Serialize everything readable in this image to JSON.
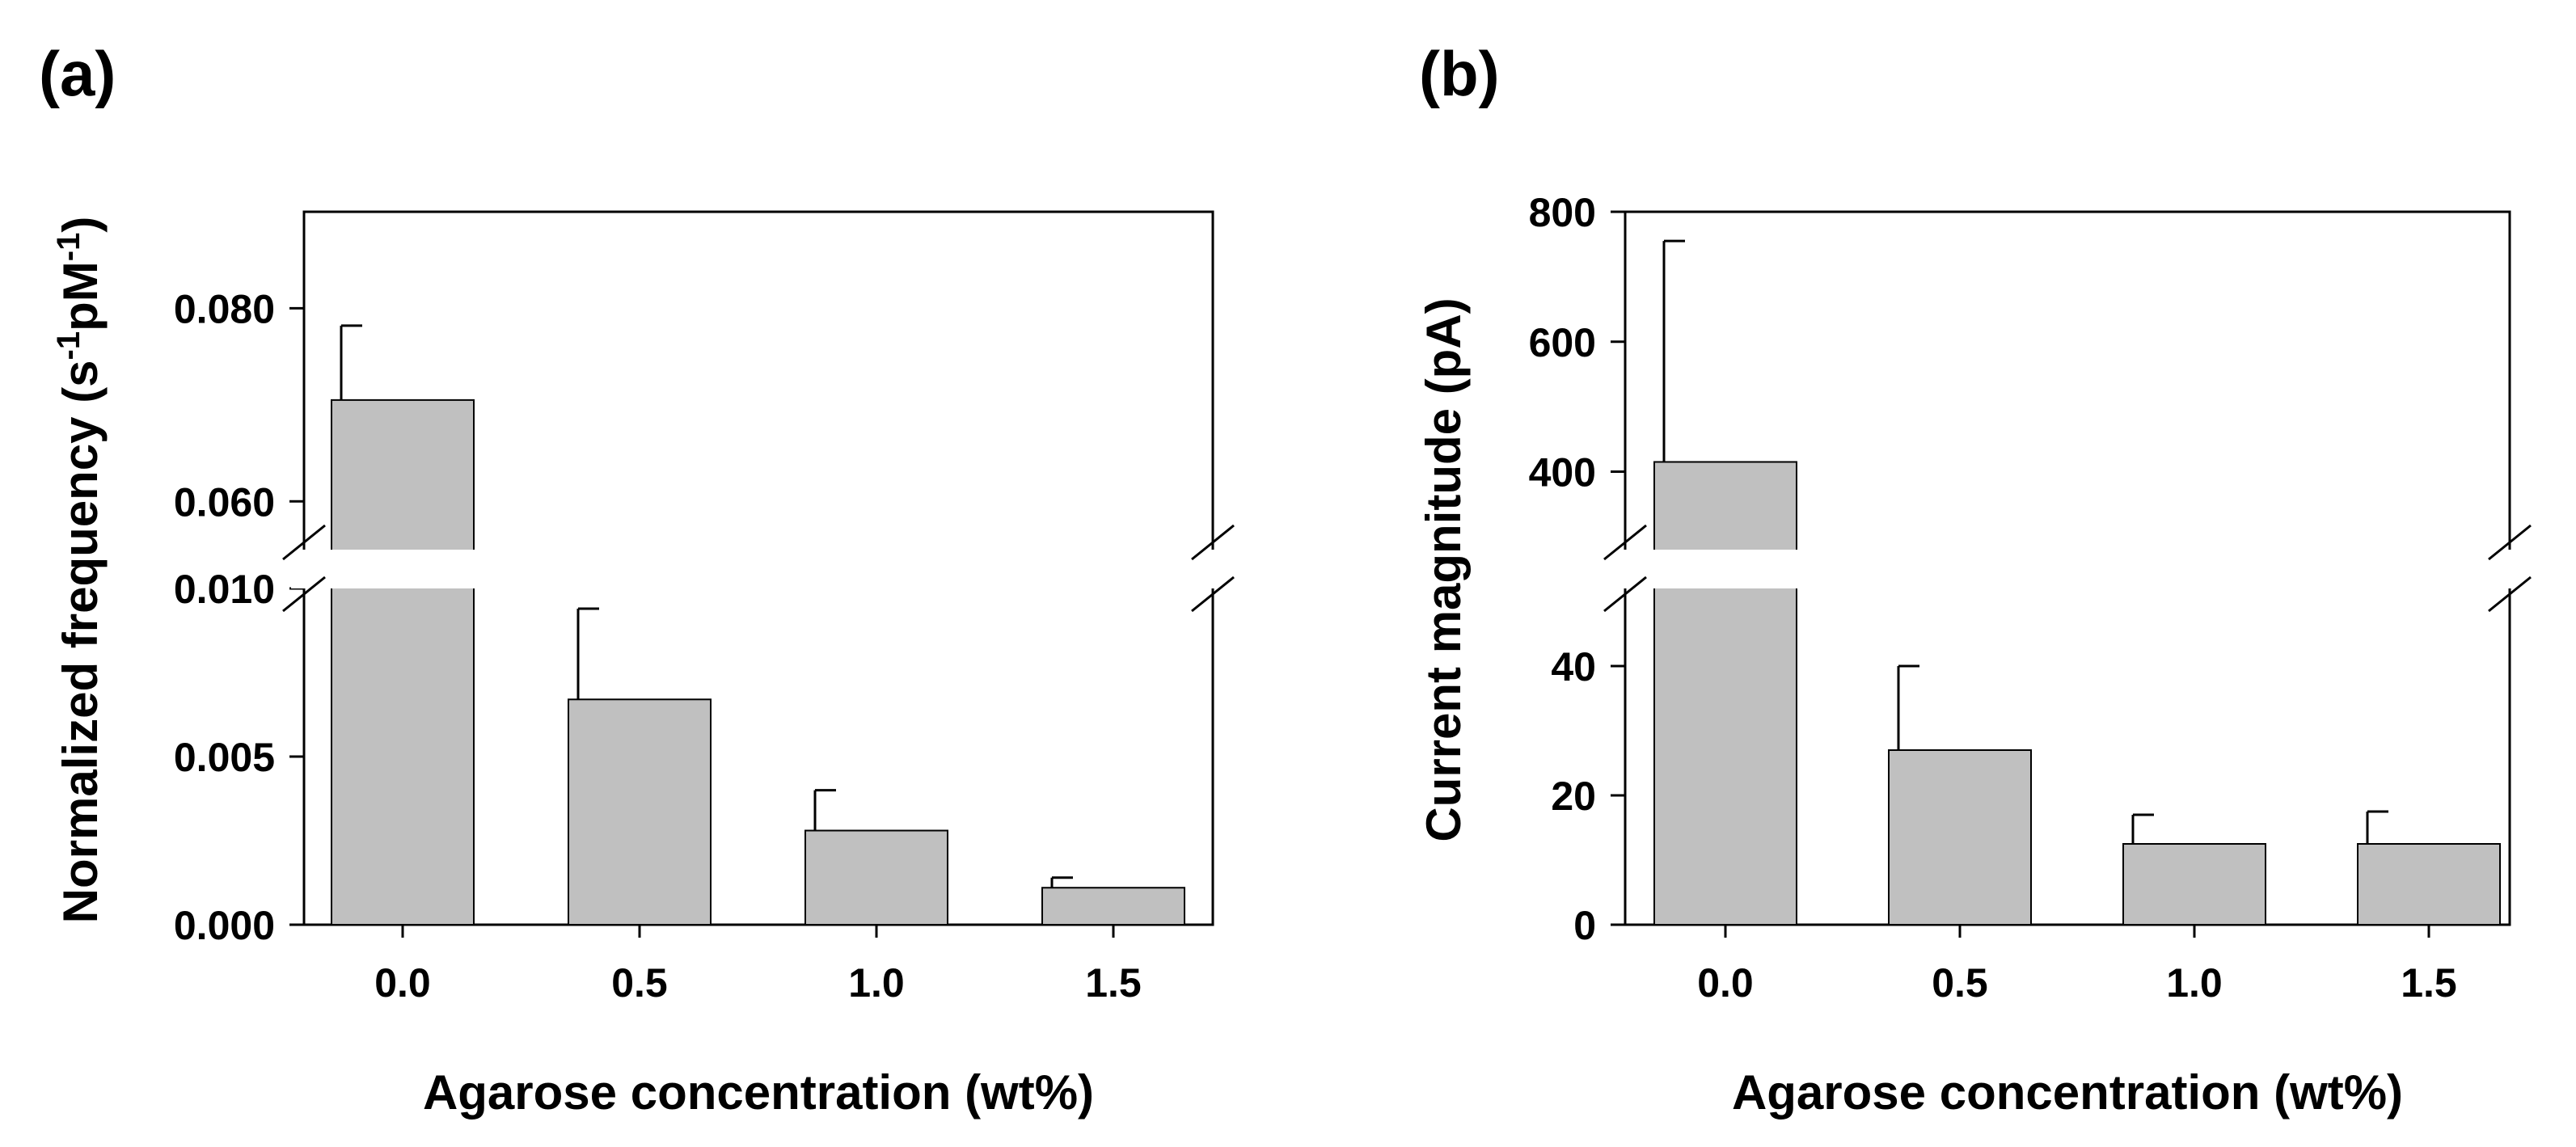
{
  "colors": {
    "bar": "#c0c0c0",
    "axis": "#000000",
    "background": "#ffffff"
  },
  "chart_data": [
    {
      "type": "bar",
      "panel": "(a)",
      "ylabel_text": "Normalized frequency (s",
      "ylabel_sup1": "-1",
      "ylabel_mid": "pM",
      "ylabel_sup2": "-1",
      "ylabel_end": ")",
      "xlabel": "Agarose concentration (wt%)",
      "categories": [
        "0.0",
        "0.5",
        "1.0",
        "1.5"
      ],
      "values": [
        0.0705,
        0.0067,
        0.0028,
        0.0011
      ],
      "errors": [
        0.0077,
        0.0027,
        0.0012,
        0.0003
      ],
      "broken_axis": {
        "lower_range": [
          0,
          0.01
        ],
        "upper_range": [
          0.055,
          0.09
        ]
      },
      "yticks_lower": [
        0.0,
        0.005,
        0.01
      ],
      "yticks_lower_labels": [
        "0.000",
        "0.005",
        "0.010"
      ],
      "yticks_upper": [
        0.06,
        0.08
      ],
      "yticks_upper_labels": [
        "0.060",
        "0.080"
      ]
    },
    {
      "type": "bar",
      "panel": "(b)",
      "ylabel_text": "Current magnitude (pA)",
      "xlabel": "Agarose concentration (wt%)",
      "categories": [
        "0.0",
        "0.5",
        "1.0",
        "1.5"
      ],
      "values": [
        415,
        27,
        12.5,
        12.5
      ],
      "errors": [
        340,
        13,
        4.5,
        5
      ],
      "broken_axis": {
        "lower_range": [
          0,
          52
        ],
        "upper_range": [
          280,
          800
        ]
      },
      "yticks_lower": [
        0,
        20,
        40
      ],
      "yticks_lower_labels": [
        "0",
        "20",
        "40"
      ],
      "yticks_upper": [
        400,
        600,
        800
      ],
      "yticks_upper_labels": [
        "400",
        "600",
        "800"
      ]
    }
  ]
}
